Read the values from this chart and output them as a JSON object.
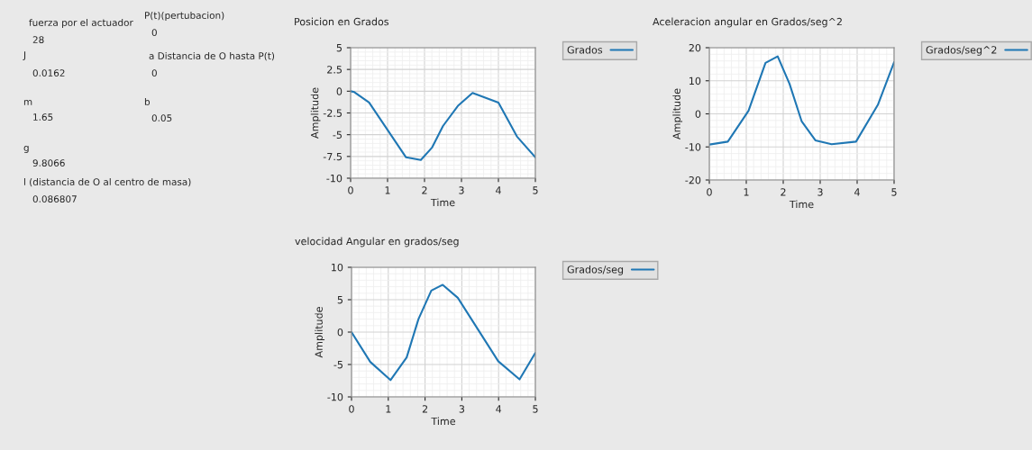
{
  "chart_data": [
    {
      "type": "other",
      "annotations": [
        "fuerza por el actuador",
        "28",
        "J",
        "0.0162",
        "m",
        "1.65",
        "g",
        "9.8066",
        "l (distancia de O al centro de masa)",
        "0.086807",
        "P(t)(pertubacion)",
        "0",
        "a Distancia de O hasta P(t)",
        "0",
        "b",
        "0.05"
      ]
    },
    {
      "type": "line",
      "title": "Posicion en Grados",
      "xlabel": "Time",
      "ylabel": "Amplitude",
      "xlim": [
        0,
        5
      ],
      "ylim": [
        -10,
        5
      ],
      "xticks": [
        0,
        1,
        2,
        3,
        4,
        5
      ],
      "yticks": [
        -10,
        -7.5,
        -5,
        -2.5,
        0,
        2.5,
        5
      ],
      "grid": true,
      "legend": "top right",
      "series": [
        {
          "name": "Grados",
          "color": "#1f77b4",
          "x": [
            0,
            0.1,
            0.5,
            1.5,
            1.9,
            2.2,
            2.5,
            2.9,
            3.3,
            4.0,
            4.5,
            5
          ],
          "values": [
            0,
            -0.1,
            -1.3,
            -7.6,
            -7.9,
            -6.5,
            -4.0,
            -1.7,
            -0.2,
            -1.3,
            -5.2,
            -7.6
          ]
        }
      ]
    },
    {
      "type": "line",
      "title": "Aceleracion angular en Grados/seg^2",
      "xlabel": "Time",
      "ylabel": "Amplitude",
      "xlim": [
        0,
        5
      ],
      "ylim": [
        -20,
        20
      ],
      "xticks": [
        0,
        1,
        2,
        3,
        4,
        5
      ],
      "yticks": [
        -20,
        -10,
        0,
        10,
        20
      ],
      "grid": true,
      "legend": "top right",
      "series": [
        {
          "name": "Grados/seg^2",
          "color": "#1f77b4",
          "x": [
            0,
            0.5,
            1.06,
            1.52,
            1.85,
            2.17,
            2.5,
            2.87,
            3.31,
            3.97,
            4.56,
            5
          ],
          "values": [
            -9.3,
            -8.4,
            0.9,
            15.4,
            17.4,
            9.1,
            -2.3,
            -8.0,
            -9.2,
            -8.4,
            2.7,
            15.6
          ]
        }
      ]
    },
    {
      "type": "line",
      "title": "velocidad Angular en grados/seg",
      "xlabel": "Time",
      "ylabel": "Amplitude",
      "xlim": [
        0,
        5
      ],
      "ylim": [
        -10,
        10
      ],
      "xticks": [
        0,
        1,
        2,
        3,
        4,
        5
      ],
      "yticks": [
        -10,
        -5,
        0,
        5,
        10
      ],
      "grid": true,
      "legend": "top right",
      "series": [
        {
          "name": "Grados/seg",
          "color": "#1f77b4",
          "x": [
            0,
            0.51,
            1.06,
            1.5,
            1.82,
            2.17,
            2.48,
            2.89,
            3.99,
            4.57,
            5
          ],
          "values": [
            0,
            -4.6,
            -7.4,
            -3.9,
            2.0,
            6.4,
            7.3,
            5.3,
            -4.5,
            -7.3,
            -3.2
          ]
        }
      ]
    }
  ]
}
